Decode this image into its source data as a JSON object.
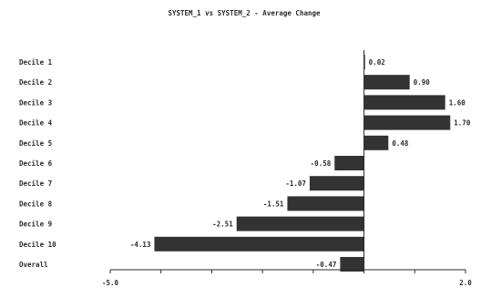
{
  "chart_data": {
    "type": "bar",
    "orientation": "horizontal",
    "title": "SYSTEM_1 vs SYSTEM_2 - Average  Change",
    "categories": [
      "Decile 1",
      "Decile 2",
      "Decile 3",
      "Decile 4",
      "Decile 5",
      "Decile 6",
      "Decile 7",
      "Decile 8",
      "Decile 9",
      "Decile 10",
      "Overall"
    ],
    "values": [
      0.02,
      0.9,
      1.6,
      1.7,
      0.48,
      -0.58,
      -1.07,
      -1.51,
      -2.51,
      -4.13,
      -0.47
    ],
    "value_labels": [
      "0.02",
      "0.90",
      "1.60",
      "1.70",
      "0.48",
      "-0.58",
      "-1.07",
      "-1.51",
      "-2.51",
      "-4.13",
      "-0.47"
    ],
    "xlim": [
      -5.0,
      2.0
    ],
    "xticks": [
      "-5.0",
      "2.0"
    ],
    "grid": false,
    "colors": {
      "bar": "#333333",
      "text": "#2b2b2b",
      "axis": "#2b2b2b"
    }
  }
}
